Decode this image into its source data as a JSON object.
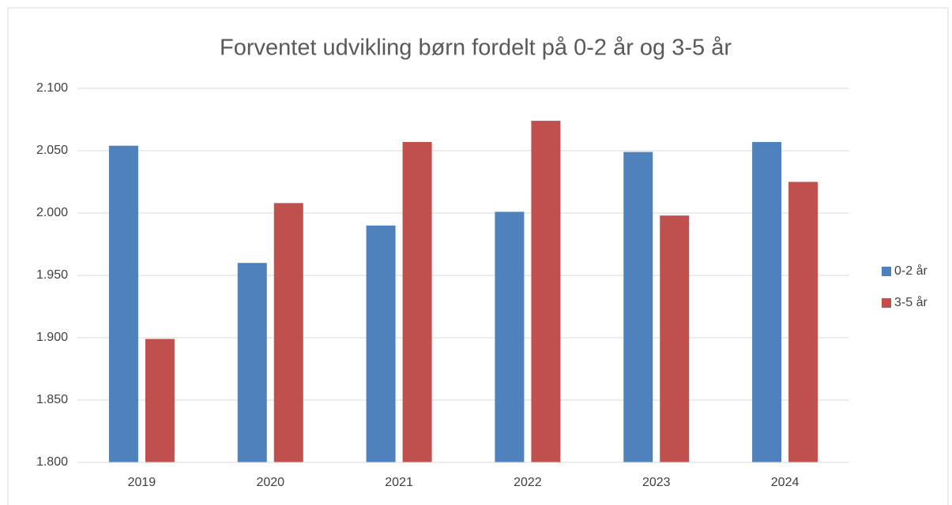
{
  "chart_data": {
    "type": "bar",
    "title": "Forventet udvikling børn fordelt på 0-2 år og 3-5 år",
    "categories": [
      "2019",
      "2020",
      "2021",
      "2022",
      "2023",
      "2024"
    ],
    "series": [
      {
        "name": "0-2 år",
        "color": "#4f81bd",
        "values": [
          2054,
          1960,
          1990,
          2001,
          2049,
          2057
        ]
      },
      {
        "name": "3-5 år",
        "color": "#c0504d",
        "values": [
          1899,
          2008,
          2057,
          2074,
          1998,
          2025
        ]
      }
    ],
    "ylim": [
      1800,
      2100
    ],
    "yticks": [
      {
        "value": 1800,
        "label": "1.800"
      },
      {
        "value": 1850,
        "label": "1.850"
      },
      {
        "value": 1900,
        "label": "1.900"
      },
      {
        "value": 1950,
        "label": "1.950"
      },
      {
        "value": 2000,
        "label": "2.000"
      },
      {
        "value": 2050,
        "label": "2.050"
      },
      {
        "value": 2100,
        "label": "2.100"
      }
    ],
    "grid": true,
    "legend": "right"
  }
}
